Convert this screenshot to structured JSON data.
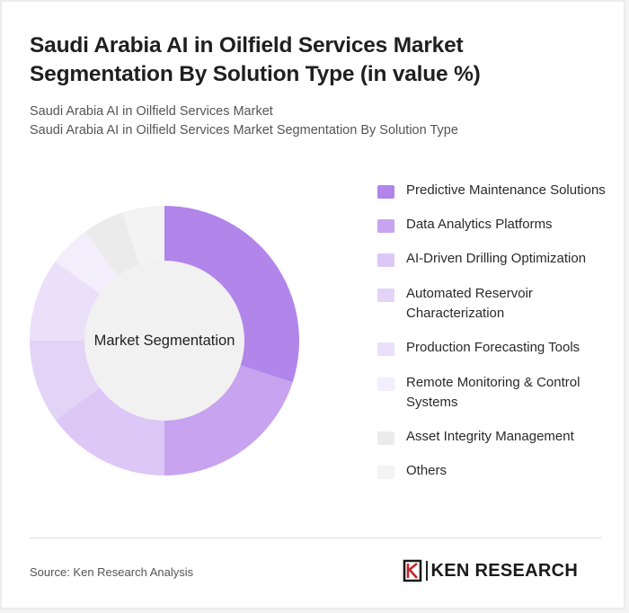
{
  "title": "Saudi Arabia AI in Oilfield Services Market Segmentation By Solution Type (in value %)",
  "subtitle_lines": [
    "Saudi Arabia AI in Oilfield Services Market",
    "Saudi Arabia AI in Oilfield Services Market Segmentation By Solution Type"
  ],
  "chart_data": {
    "type": "pie",
    "center_label": "Market Segmentation",
    "categories": [
      "Predictive Maintenance Solutions",
      "Data Analytics Platforms",
      "AI-Driven Drilling Optimization",
      "Automated Reservoir Characterization",
      "Production Forecasting Tools",
      "Remote Monitoring & Control Systems",
      "Asset Integrity Management",
      "Others"
    ],
    "values": [
      30,
      20,
      15,
      10,
      10,
      5,
      5,
      5
    ],
    "colors": [
      "#b185ea",
      "#c7a3f0",
      "#dcc7f6",
      "#e3d4f7",
      "#ebe0f9",
      "#f3eefc",
      "#ebebeb",
      "#f3f3f3"
    ],
    "legend_position": "right"
  },
  "source": "Source: Ken Research Analysis",
  "brand": {
    "name": "KEN RESEARCH",
    "icon": "ken-research-logo-icon"
  }
}
